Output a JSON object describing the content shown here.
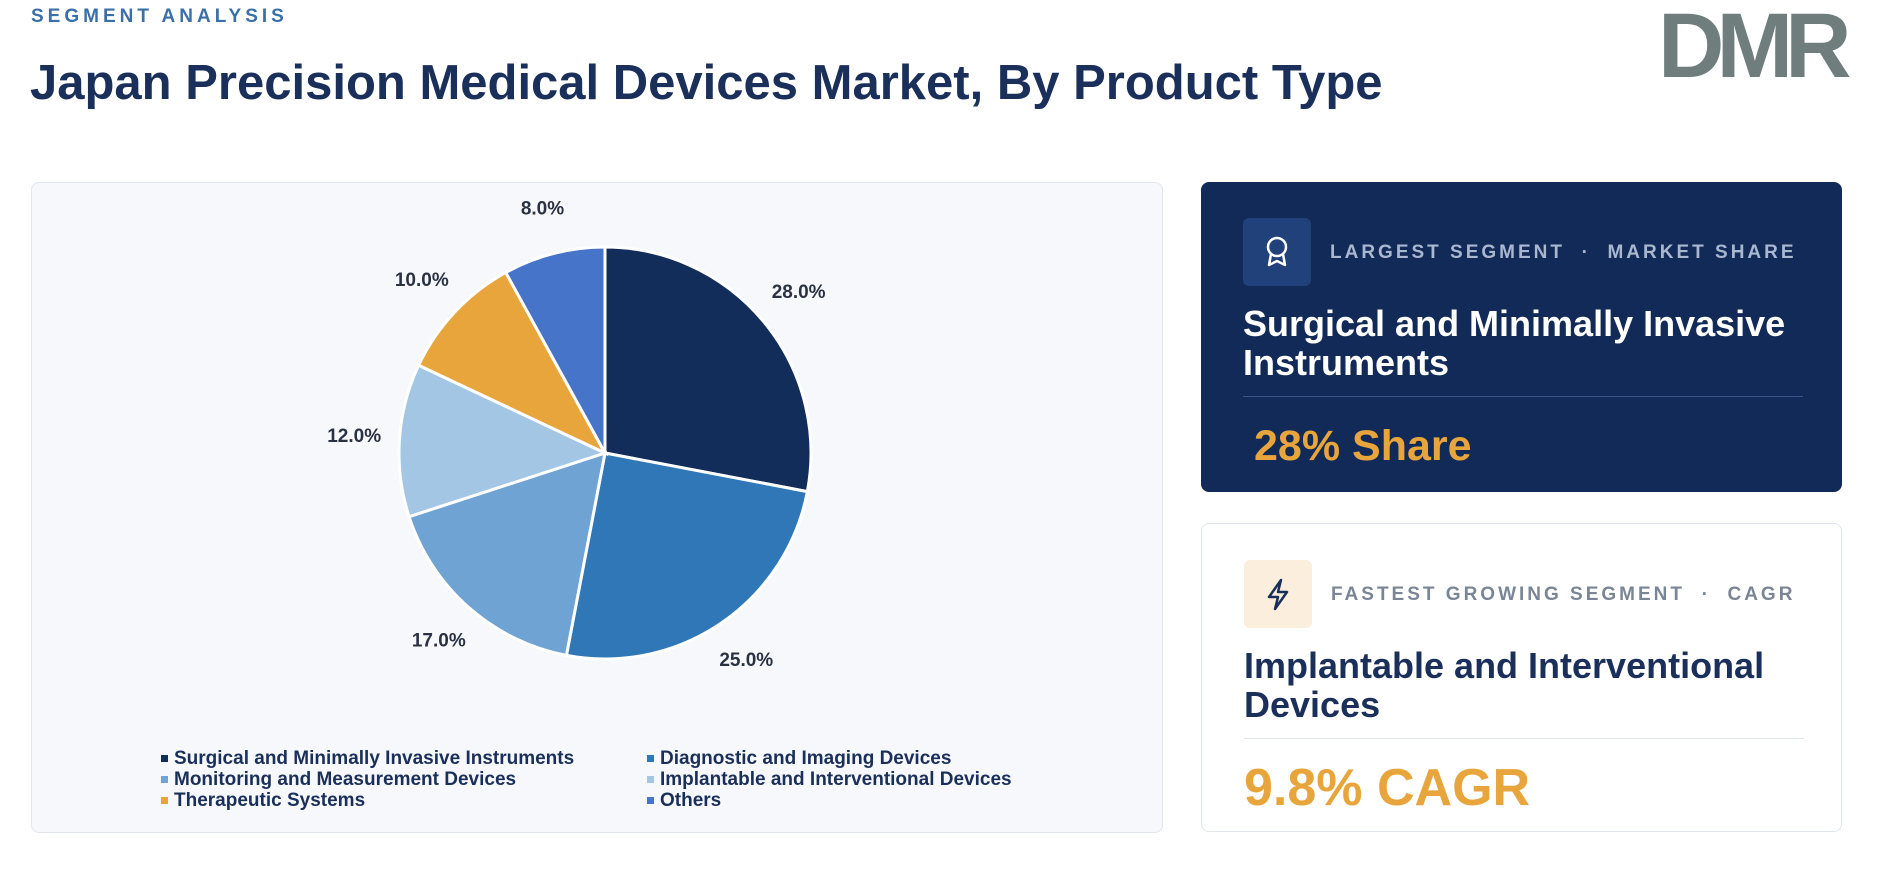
{
  "header": {
    "eyebrow": "SEGMENT ANALYSIS",
    "logo": "DMR"
  },
  "chart_data": {
    "type": "pie",
    "title": "Japan Precision Medical Devices Market, By Product Type",
    "categories": [
      "Surgical and Minimally Invasive Instruments",
      "Diagnostic and Imaging Devices",
      "Monitoring and Measurement Devices",
      "Implantable and Interventional Devices",
      "Therapeutic Systems",
      "Others"
    ],
    "values": [
      28,
      25,
      17,
      12,
      10,
      8
    ],
    "value_labels": [
      "28.0%",
      "25.0%",
      "17.0%",
      "12.0%",
      "10.0%",
      "8.0%"
    ],
    "colors": [
      "#132d5b",
      "#2f77b7",
      "#6ea3d3",
      "#a3c6e5",
      "#e8a53c",
      "#4574c8"
    ]
  },
  "cards": {
    "separator": "·",
    "items": [
      {
        "tags": [
          "LARGEST SEGMENT",
          "MARKET SHARE"
        ],
        "title": "Surgical and Minimally Invasive Instruments",
        "value": "28% Share"
      },
      {
        "tags": [
          "FASTEST GROWING SEGMENT",
          "CAGR"
        ],
        "title": "Implantable and Interventional Devices",
        "value": "9.8% CAGR"
      }
    ]
  }
}
